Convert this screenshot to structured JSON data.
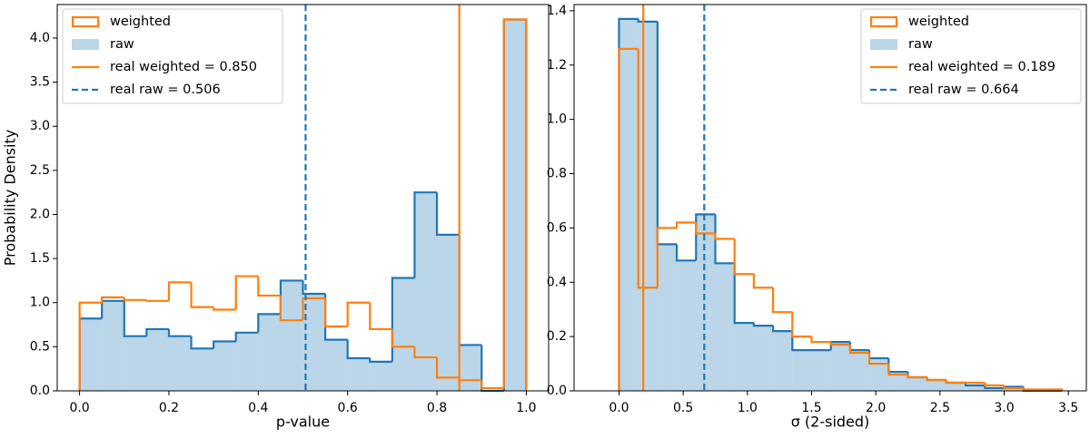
{
  "chart_data": [
    {
      "type": "histogram",
      "xlabel": "p-value",
      "ylabel": "Probability Density",
      "xlim": [
        -0.05,
        1.05
      ],
      "ylim": [
        0,
        4.38
      ],
      "xticks": [
        {
          "value": 0,
          "label": "0.0"
        },
        0.2,
        0.4,
        0.6,
        0.8,
        {
          "value": 1,
          "label": "1.0"
        }
      ],
      "yticks": [
        {
          "value": 0,
          "label": "0.0"
        },
        0.5,
        {
          "value": 1,
          "label": "1.0"
        },
        1.5,
        {
          "value": 2,
          "label": "2.0"
        },
        2.5,
        {
          "value": 3,
          "label": "3.0"
        },
        3.5,
        {
          "value": 4,
          "label": "4.0"
        }
      ],
      "bins": [
        0,
        0.05,
        0.1,
        0.15,
        0.2,
        0.25,
        0.3,
        0.35,
        0.4,
        0.45,
        0.5,
        0.55,
        0.6,
        0.65,
        0.7,
        0.75,
        0.8,
        0.85,
        0.9,
        0.95,
        1.0
      ],
      "legend": "upper left",
      "series": [
        {
          "name": "weighted",
          "color": "#ff7f0e",
          "fill": false,
          "values": [
            1.0,
            1.06,
            1.03,
            1.02,
            1.23,
            0.95,
            0.92,
            1.3,
            1.08,
            0.8,
            1.05,
            0.73,
            1.0,
            0.7,
            0.5,
            0.38,
            0.15,
            0.12,
            0.03,
            4.21
          ]
        },
        {
          "name": "raw",
          "color": "#1f77b4",
          "fill": true,
          "values": [
            0.82,
            1.02,
            0.62,
            0.7,
            0.62,
            0.48,
            0.56,
            0.66,
            0.87,
            1.25,
            1.1,
            0.58,
            0.37,
            0.33,
            1.28,
            2.25,
            1.77,
            0.52,
            0.0,
            4.21
          ]
        }
      ],
      "vlines": [
        {
          "name": "real weighted = 0.850",
          "x": 0.85,
          "color": "#ff7f0e",
          "style": "solid"
        },
        {
          "name": "real raw = 0.506",
          "x": 0.506,
          "color": "#1f77b4",
          "style": "dashed"
        }
      ]
    },
    {
      "type": "histogram",
      "xlabel": "σ (2-sided)",
      "xlim": [
        -0.35,
        3.64
      ],
      "ylim": [
        0,
        1.423
      ],
      "xticks": [
        {
          "value": 0,
          "label": "0.0"
        },
        0.5,
        {
          "value": 1,
          "label": "1.0"
        },
        1.5,
        {
          "value": 2,
          "label": "2.0"
        },
        2.5,
        {
          "value": 3,
          "label": "3.0"
        },
        3.5
      ],
      "yticks": [
        {
          "value": 0,
          "label": "0.0"
        },
        0.2,
        0.4,
        0.6,
        0.8,
        {
          "value": 1,
          "label": "1.0"
        },
        1.2,
        1.4
      ],
      "bins": [
        0,
        0.15,
        0.3,
        0.45,
        0.6,
        0.75,
        0.9,
        1.05,
        1.2,
        1.35,
        1.5,
        1.65,
        1.8,
        1.95,
        2.1,
        2.25,
        2.4,
        2.55,
        2.7,
        2.85,
        3.0,
        3.15,
        3.3,
        3.45
      ],
      "legend": "upper right",
      "series": [
        {
          "name": "weighted",
          "color": "#ff7f0e",
          "fill": false,
          "values": [
            1.26,
            0.38,
            0.6,
            0.62,
            0.58,
            0.56,
            0.43,
            0.38,
            0.29,
            0.2,
            0.18,
            0.17,
            0.14,
            0.1,
            0.06,
            0.05,
            0.04,
            0.03,
            0.03,
            0.02,
            0.01,
            0.005,
            0.005
          ]
        },
        {
          "name": "raw",
          "color": "#1f77b4",
          "fill": true,
          "values": [
            1.37,
            1.36,
            0.54,
            0.48,
            0.65,
            0.47,
            0.25,
            0.24,
            0.22,
            0.15,
            0.15,
            0.18,
            0.15,
            0.12,
            0.07,
            0.05,
            0.04,
            0.03,
            0.02,
            0.01,
            0.015,
            0.0,
            0.0
          ]
        }
      ],
      "vlines": [
        {
          "name": "real weighted = 0.189",
          "x": 0.189,
          "color": "#ff7f0e",
          "style": "solid"
        },
        {
          "name": "real raw = 0.664",
          "x": 0.664,
          "color": "#1f77b4",
          "style": "dashed"
        }
      ]
    }
  ]
}
